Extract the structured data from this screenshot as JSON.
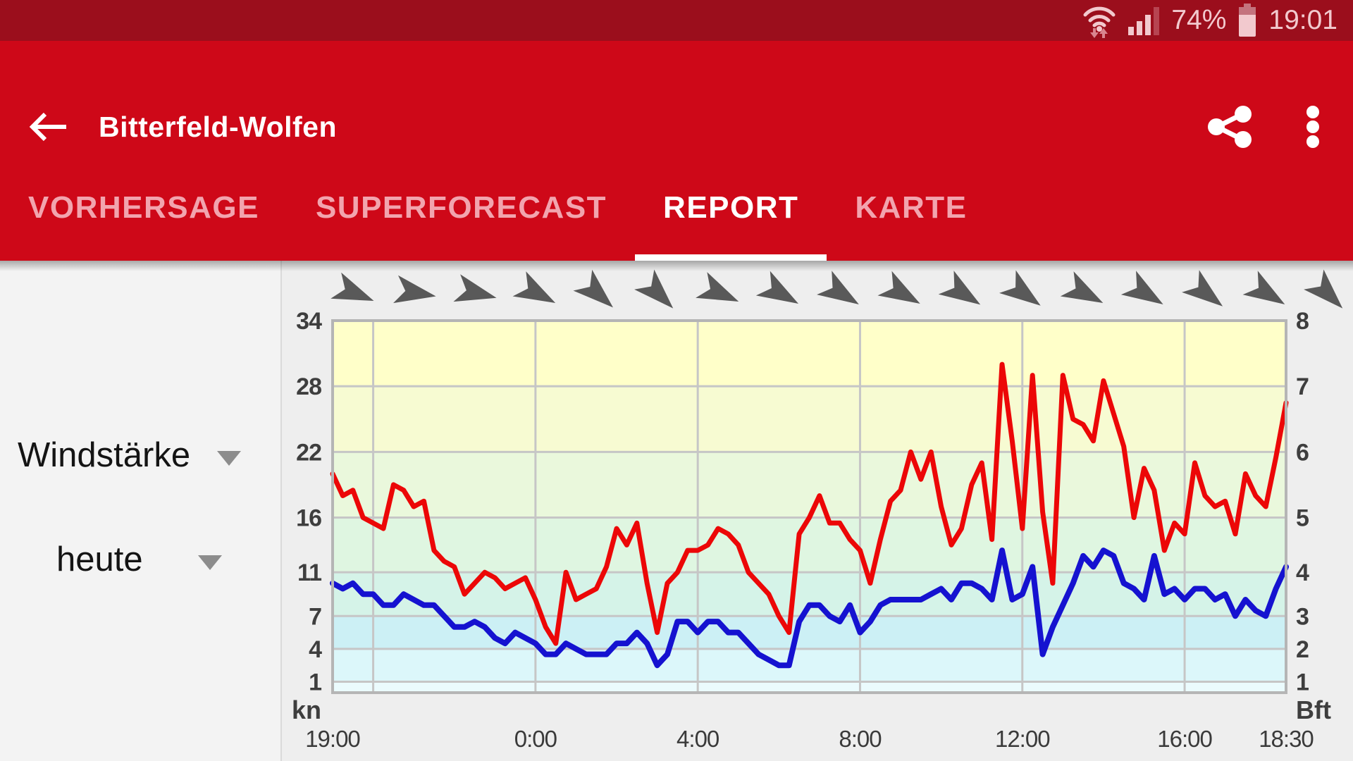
{
  "status_bar": {
    "battery_percent": "74%",
    "time": "19:01",
    "icons": [
      "wifi-icon",
      "signal-strength-icon",
      "battery-icon"
    ]
  },
  "app_bar": {
    "title": "Bitterfeld-Wolfen",
    "icons": [
      "back-arrow-icon",
      "share-icon",
      "overflow-menu-icon"
    ]
  },
  "tabs": [
    {
      "label": "VORHERSAGE",
      "active": false
    },
    {
      "label": "SUPERFORECAST",
      "active": false
    },
    {
      "label": "REPORT",
      "active": true
    },
    {
      "label": "KARTE",
      "active": false
    }
  ],
  "sidebar": {
    "parameter_label": "Windstärke",
    "day_label": "heute"
  },
  "chart_data": {
    "type": "line",
    "title": "",
    "x_axis": {
      "tick_labels": [
        "19:00",
        "0:00",
        "4:00",
        "8:00",
        "12:00",
        "16:00",
        "18:30"
      ],
      "tick_hours": [
        0,
        5,
        9,
        13,
        17,
        21,
        23.5
      ],
      "gridline_hours": [
        1,
        5,
        9,
        13,
        17,
        21
      ],
      "duration_hours": 23.5,
      "interval_minutes": 15
    },
    "y_axis_left": {
      "unit": "kn",
      "tick_values": [
        34,
        28,
        22,
        16,
        11,
        7,
        4,
        1
      ]
    },
    "y_axis_right": {
      "unit": "Bft",
      "tick_values": [
        8,
        7,
        6,
        5,
        4,
        3,
        2,
        1
      ]
    },
    "y_max_kn": 34,
    "grid_color": "#C6C6C6",
    "border_color": "#B5B5B5",
    "plot_bands_kn": [
      {
        "from_kn": 28,
        "to_kn": 34,
        "color": "#FFFFC9"
      },
      {
        "from_kn": 22,
        "to_kn": 28,
        "color": "#F7FBD2"
      },
      {
        "from_kn": 16,
        "to_kn": 22,
        "color": "#EAF8DC"
      },
      {
        "from_kn": 11,
        "to_kn": 16,
        "color": "#DFF6E1"
      },
      {
        "from_kn": 7,
        "to_kn": 11,
        "color": "#D5F3E8"
      },
      {
        "from_kn": 4,
        "to_kn": 7,
        "color": "#CCF0F5"
      },
      {
        "from_kn": 1,
        "to_kn": 4,
        "color": "#DCF7FA"
      },
      {
        "from_kn": 0,
        "to_kn": 1,
        "color": "#EBFBFD"
      }
    ],
    "series": [
      {
        "name": "red",
        "color": "#EC0707",
        "stroke_width": 7,
        "values_kn": [
          20,
          18,
          18.5,
          16,
          15.5,
          15,
          19,
          18.5,
          17,
          17.5,
          13,
          12,
          11.5,
          9,
          10,
          11,
          10.5,
          9.5,
          10,
          10.5,
          8.5,
          6,
          4.5,
          11,
          8.5,
          9,
          9.5,
          11.5,
          15,
          13.5,
          15.5,
          10,
          5.5,
          10,
          11,
          13,
          13,
          13.5,
          15,
          14.5,
          13.5,
          11,
          10,
          9,
          7,
          5.5,
          14.5,
          16,
          18,
          15.5,
          15.5,
          14,
          13,
          10,
          14,
          17.5,
          18.5,
          22,
          19.5,
          22,
          17,
          13.5,
          15,
          19,
          21,
          14,
          30,
          23,
          15,
          29,
          16.5,
          10,
          29,
          25,
          24.5,
          23,
          28.5,
          25.5,
          22.5,
          16,
          20.5,
          18.5,
          13,
          15.5,
          14.5,
          21,
          18,
          17,
          17.5,
          14.5,
          20,
          18,
          17,
          21.5,
          26.5
        ]
      },
      {
        "name": "blue",
        "color": "#1512D0",
        "stroke_width": 8,
        "values_kn": [
          10,
          9.5,
          10,
          9,
          9,
          8,
          8,
          9,
          8.5,
          8,
          8,
          7,
          6,
          6,
          6.5,
          6,
          5,
          4.5,
          5.5,
          5,
          4.5,
          3.5,
          3.5,
          4.5,
          4,
          3.5,
          3.5,
          3.5,
          4.5,
          4.5,
          5.5,
          4.5,
          2.5,
          3.5,
          6.5,
          6.5,
          5.5,
          6.5,
          6.5,
          5.5,
          5.5,
          4.5,
          3.5,
          3,
          2.5,
          2.5,
          6.5,
          8,
          8,
          7,
          6.5,
          8,
          5.5,
          6.5,
          8,
          8.5,
          8.5,
          8.5,
          8.5,
          9,
          9.5,
          8.5,
          10,
          10,
          9.5,
          8.5,
          13,
          8.5,
          9,
          11.5,
          3.5,
          6,
          8,
          10,
          12.5,
          11.5,
          13,
          12.5,
          10,
          9.5,
          8.5,
          12.5,
          9,
          9.5,
          8.5,
          9.5,
          9.5,
          8.5,
          9,
          7,
          8.5,
          7.5,
          7,
          9.5,
          11.5
        ]
      }
    ],
    "wind_arrows": {
      "color": "#595959",
      "start_hour": 0.5,
      "spacing_hours": 1.5,
      "angles_deg": [
        22,
        10,
        14,
        28,
        42,
        45,
        24,
        30,
        32,
        30,
        33,
        36,
        28,
        32,
        38,
        32,
        45
      ]
    }
  }
}
